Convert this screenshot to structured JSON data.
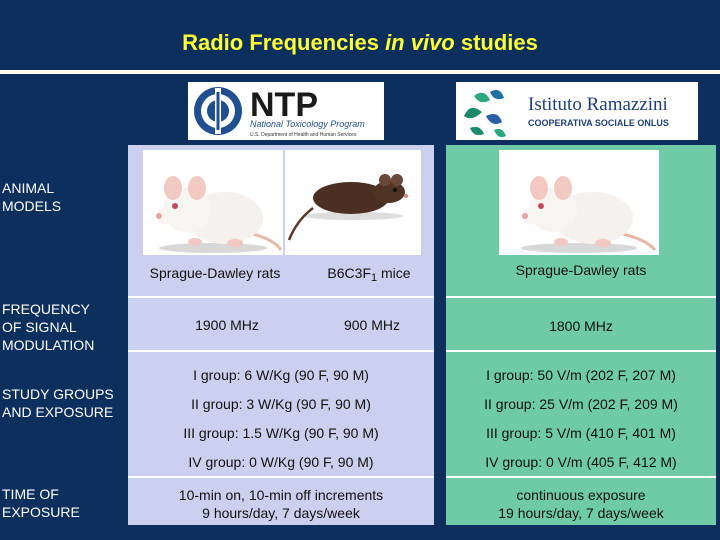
{
  "slide": {
    "title_prefix": "Radio Frequencies ",
    "title_italic": "in vivo",
    "title_suffix": " studies"
  },
  "logos": {
    "ntp": {
      "acronym": "NTP",
      "name": "National Toxicology Program",
      "dept": "U.S. Department of Health and Human Services"
    },
    "ramazzini": {
      "name": "Istituto Ramazzini",
      "sub": "COOPERATIVA SOCIALE ONLUS"
    }
  },
  "row_labels": {
    "animal_models": [
      "ANIMAL",
      "MODELS"
    ],
    "frequency": [
      "FREQUENCY",
      "OF SIGNAL",
      "MODULATION"
    ],
    "study_groups": [
      "STUDY GROUPS",
      "AND EXPOSURE"
    ],
    "time": [
      "TIME OF",
      "EXPOSURE"
    ]
  },
  "ntp": {
    "models": [
      {
        "name": "Sprague-Dawley rats"
      },
      {
        "name_prefix": "B6C3F",
        "name_sub": "1",
        "name_suffix": " mice"
      }
    ],
    "frequencies": [
      "1900 MHz",
      "900 MHz"
    ],
    "groups": [
      "I group: 6 W/Kg (90 F, 90 M)",
      "II group: 3 W/Kg (90 F, 90 M)",
      "III group: 1.5 W/Kg (90 F, 90 M)",
      "IV group: 0 W/Kg (90 F, 90 M)"
    ],
    "time": [
      "10-min on, 10-min off increments",
      "9 hours/day, 7 days/week"
    ]
  },
  "ramazzini": {
    "model": "Sprague-Dawley rats",
    "frequency": "1800 MHz",
    "groups": [
      "I group: 50 V/m (202 F, 207 M)",
      "II group: 25 V/m (202 F, 209 M)",
      "III group: 5 V/m (410 F, 401 M)",
      "IV group: 0 V/m (405 F, 412 M)"
    ],
    "time": [
      "continuous exposure",
      "19 hours/day, 7 days/week"
    ]
  },
  "colors": {
    "background": "#0d2f5e",
    "title": "#ffff33",
    "ntp_panel": "#ccd0ef",
    "ramazzini_panel": "#6fcba6"
  }
}
